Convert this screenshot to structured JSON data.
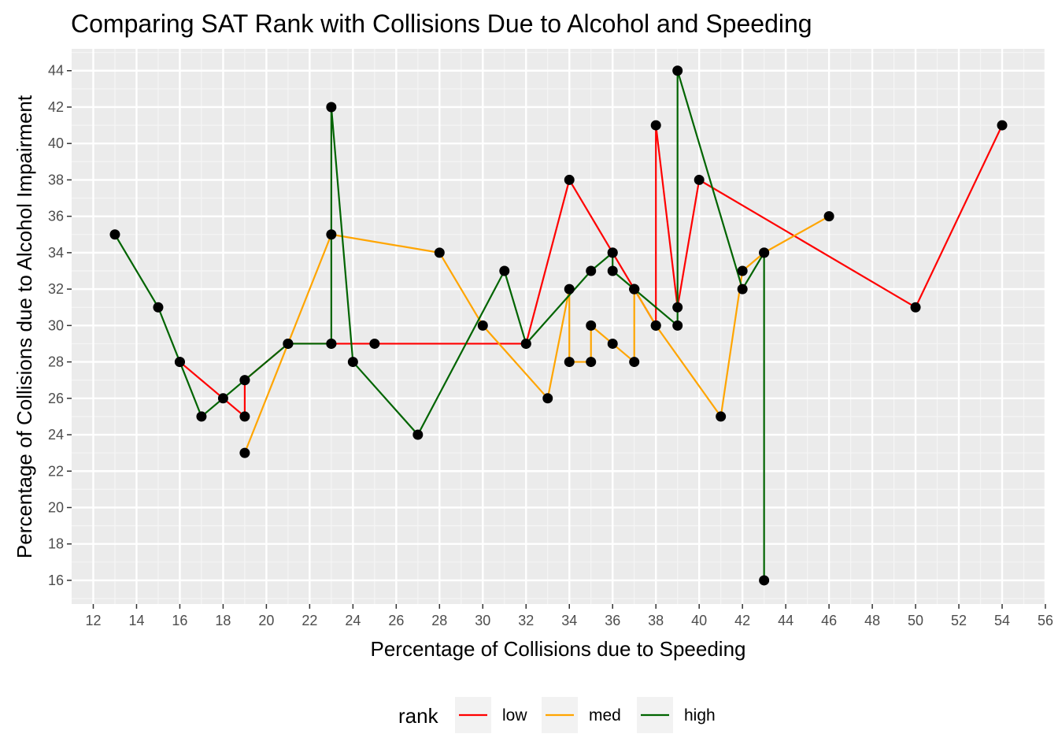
{
  "chart_data": {
    "type": "line",
    "title": "Comparing SAT Rank with Collisions Due to Alcohol and Speeding",
    "xlabel": "Percentage of Collisions due to Speeding",
    "ylabel": "Percentage of Collisions due to Alcohol Impairment",
    "xlim": [
      11,
      56
    ],
    "ylim": [
      14.7,
      45.2
    ],
    "x_ticks": [
      12,
      14,
      16,
      18,
      20,
      22,
      24,
      26,
      28,
      30,
      32,
      34,
      36,
      38,
      40,
      42,
      44,
      46,
      48,
      50,
      52,
      54,
      56
    ],
    "y_ticks": [
      16,
      18,
      20,
      22,
      24,
      26,
      28,
      30,
      32,
      34,
      36,
      38,
      40,
      42,
      44
    ],
    "grid": true,
    "legend": {
      "title": "rank",
      "position": "bottom"
    },
    "series": [
      {
        "name": "low",
        "color": "#FF0000",
        "points": [
          [
            16,
            28
          ],
          [
            18,
            26
          ],
          [
            19,
            25
          ],
          [
            19,
            27
          ],
          [
            21,
            29
          ],
          [
            23,
            29
          ],
          [
            25,
            29
          ],
          [
            32,
            29
          ],
          [
            34,
            38
          ],
          [
            36,
            34
          ],
          [
            37,
            32
          ],
          [
            38,
            30
          ],
          [
            38,
            41
          ],
          [
            39,
            31
          ],
          [
            40,
            38
          ],
          [
            50,
            31
          ],
          [
            54,
            41
          ]
        ]
      },
      {
        "name": "med",
        "color": "#FFA500",
        "points": [
          [
            19,
            23
          ],
          [
            21,
            29
          ],
          [
            23,
            35
          ],
          [
            28,
            34
          ],
          [
            30,
            30
          ],
          [
            33,
            26
          ],
          [
            34,
            32
          ],
          [
            34,
            28
          ],
          [
            35,
            28
          ],
          [
            35,
            30
          ],
          [
            36,
            29
          ],
          [
            37,
            28
          ],
          [
            37,
            32
          ],
          [
            38,
            30
          ],
          [
            41,
            25
          ],
          [
            42,
            33
          ],
          [
            43,
            34
          ],
          [
            46,
            36
          ]
        ]
      },
      {
        "name": "high",
        "color": "#006400",
        "points": [
          [
            13,
            35
          ],
          [
            15,
            31
          ],
          [
            16,
            28
          ],
          [
            17,
            25
          ],
          [
            19,
            27
          ],
          [
            21,
            29
          ],
          [
            23,
            29
          ],
          [
            23,
            42
          ],
          [
            24,
            28
          ],
          [
            27,
            24
          ],
          [
            31,
            33
          ],
          [
            32,
            29
          ],
          [
            35,
            33
          ],
          [
            36,
            34
          ],
          [
            36,
            33
          ],
          [
            37,
            32
          ],
          [
            39,
            30
          ],
          [
            39,
            44
          ],
          [
            42,
            32
          ],
          [
            43,
            34
          ],
          [
            43,
            16
          ]
        ]
      }
    ]
  }
}
